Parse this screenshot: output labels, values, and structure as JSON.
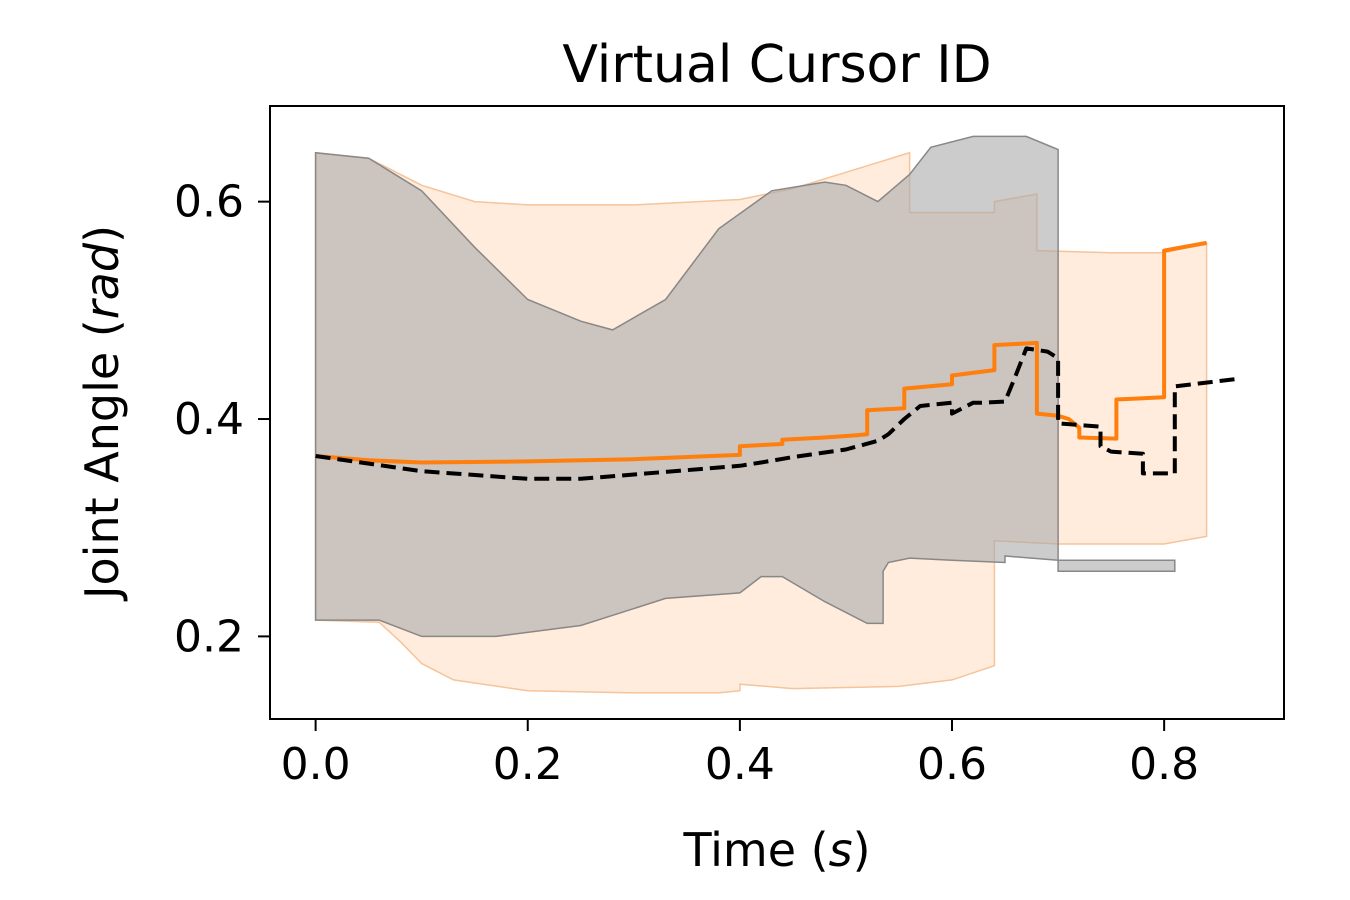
{
  "chart_data": {
    "type": "line",
    "title": "Virtual Cursor ID",
    "xlabel": {
      "text": "Time",
      "unit": "s"
    },
    "ylabel": {
      "text": "Joint Angle",
      "unit": "rad"
    },
    "xlim": [
      -0.043,
      0.913
    ],
    "ylim": [
      0.124,
      0.688
    ],
    "xticks": [
      0.0,
      0.2,
      0.4,
      0.6,
      0.8
    ],
    "xtick_labels": [
      "0.0",
      "0.2",
      "0.4",
      "0.6",
      "0.8"
    ],
    "yticks": [
      0.2,
      0.4,
      0.6
    ],
    "ytick_labels": [
      "0.2",
      "0.4",
      "0.6"
    ],
    "grid": false,
    "colors": {
      "orange": "#ff7f0e",
      "black": "#000000",
      "orange_band": "#ffdcc0",
      "gray_band": "#aaaaaa"
    },
    "bands": [
      {
        "color": "orange",
        "opacity": 0.55,
        "upper": [
          [
            0,
            0.645
          ],
          [
            0.05,
            0.64
          ],
          [
            0.1,
            0.615
          ],
          [
            0.15,
            0.6
          ],
          [
            0.2,
            0.597
          ],
          [
            0.3,
            0.597
          ],
          [
            0.4,
            0.602
          ],
          [
            0.45,
            0.612
          ],
          [
            0.5,
            0.627
          ],
          [
            0.56,
            0.645
          ],
          [
            0.56,
            0.59
          ],
          [
            0.64,
            0.59
          ],
          [
            0.64,
            0.6
          ],
          [
            0.68,
            0.607
          ],
          [
            0.68,
            0.555
          ],
          [
            0.75,
            0.553
          ],
          [
            0.8,
            0.553
          ],
          [
            0.84,
            0.562
          ]
        ],
        "lower": [
          [
            0,
            0.215
          ],
          [
            0.06,
            0.213
          ],
          [
            0.08,
            0.195
          ],
          [
            0.1,
            0.175
          ],
          [
            0.13,
            0.16
          ],
          [
            0.2,
            0.15
          ],
          [
            0.3,
            0.148
          ],
          [
            0.38,
            0.148
          ],
          [
            0.4,
            0.15
          ],
          [
            0.4,
            0.156
          ],
          [
            0.45,
            0.152
          ],
          [
            0.5,
            0.153
          ],
          [
            0.55,
            0.154
          ],
          [
            0.6,
            0.16
          ],
          [
            0.64,
            0.173
          ],
          [
            0.64,
            0.288
          ],
          [
            0.7,
            0.285
          ],
          [
            0.75,
            0.285
          ],
          [
            0.8,
            0.285
          ],
          [
            0.84,
            0.292
          ]
        ]
      },
      {
        "color": "gray",
        "opacity": 0.6,
        "upper": [
          [
            0,
            0.645
          ],
          [
            0.05,
            0.64
          ],
          [
            0.1,
            0.61
          ],
          [
            0.15,
            0.558
          ],
          [
            0.2,
            0.51
          ],
          [
            0.25,
            0.49
          ],
          [
            0.28,
            0.482
          ],
          [
            0.33,
            0.51
          ],
          [
            0.38,
            0.575
          ],
          [
            0.43,
            0.61
          ],
          [
            0.48,
            0.618
          ],
          [
            0.5,
            0.615
          ],
          [
            0.53,
            0.6
          ],
          [
            0.56,
            0.625
          ],
          [
            0.58,
            0.65
          ],
          [
            0.62,
            0.66
          ],
          [
            0.67,
            0.66
          ],
          [
            0.7,
            0.648
          ],
          [
            0.7,
            0.26
          ],
          [
            0.81,
            0.26
          ]
        ],
        "lower": [
          [
            0,
            0.215
          ],
          [
            0.06,
            0.215
          ],
          [
            0.1,
            0.2
          ],
          [
            0.17,
            0.2
          ],
          [
            0.25,
            0.21
          ],
          [
            0.33,
            0.235
          ],
          [
            0.4,
            0.24
          ],
          [
            0.42,
            0.255
          ],
          [
            0.44,
            0.255
          ],
          [
            0.48,
            0.232
          ],
          [
            0.52,
            0.212
          ],
          [
            0.535,
            0.212
          ],
          [
            0.535,
            0.26
          ],
          [
            0.54,
            0.268
          ],
          [
            0.56,
            0.272
          ],
          [
            0.6,
            0.27
          ],
          [
            0.65,
            0.268
          ],
          [
            0.65,
            0.274
          ],
          [
            0.7,
            0.27
          ],
          [
            0.75,
            0.27
          ],
          [
            0.81,
            0.27
          ]
        ]
      }
    ],
    "series": [
      {
        "color": "orange",
        "style": "solid",
        "points": [
          [
            0,
            0.366
          ],
          [
            0.05,
            0.362
          ],
          [
            0.1,
            0.36
          ],
          [
            0.2,
            0.361
          ],
          [
            0.3,
            0.363
          ],
          [
            0.4,
            0.367
          ],
          [
            0.4,
            0.375
          ],
          [
            0.44,
            0.377
          ],
          [
            0.44,
            0.381
          ],
          [
            0.48,
            0.383
          ],
          [
            0.51,
            0.385
          ],
          [
            0.52,
            0.386
          ],
          [
            0.52,
            0.408
          ],
          [
            0.555,
            0.41
          ],
          [
            0.555,
            0.428
          ],
          [
            0.6,
            0.432
          ],
          [
            0.6,
            0.44
          ],
          [
            0.64,
            0.445
          ],
          [
            0.64,
            0.468
          ],
          [
            0.68,
            0.47
          ],
          [
            0.68,
            0.405
          ],
          [
            0.7,
            0.403
          ],
          [
            0.71,
            0.4
          ],
          [
            0.72,
            0.392
          ],
          [
            0.72,
            0.383
          ],
          [
            0.755,
            0.382
          ],
          [
            0.755,
            0.418
          ],
          [
            0.8,
            0.42
          ],
          [
            0.8,
            0.555
          ],
          [
            0.84,
            0.562
          ]
        ]
      },
      {
        "color": "black",
        "style": "dashed",
        "points": [
          [
            0,
            0.366
          ],
          [
            0.1,
            0.352
          ],
          [
            0.2,
            0.345
          ],
          [
            0.25,
            0.345
          ],
          [
            0.3,
            0.349
          ],
          [
            0.4,
            0.357
          ],
          [
            0.42,
            0.36
          ],
          [
            0.45,
            0.365
          ],
          [
            0.5,
            0.372
          ],
          [
            0.53,
            0.38
          ],
          [
            0.54,
            0.386
          ],
          [
            0.555,
            0.4
          ],
          [
            0.57,
            0.412
          ],
          [
            0.6,
            0.415
          ],
          [
            0.6,
            0.405
          ],
          [
            0.62,
            0.415
          ],
          [
            0.63,
            0.415
          ],
          [
            0.65,
            0.416
          ],
          [
            0.66,
            0.44
          ],
          [
            0.67,
            0.465
          ],
          [
            0.69,
            0.462
          ],
          [
            0.7,
            0.456
          ],
          [
            0.7,
            0.396
          ],
          [
            0.74,
            0.393
          ],
          [
            0.74,
            0.375
          ],
          [
            0.75,
            0.37
          ],
          [
            0.78,
            0.368
          ],
          [
            0.78,
            0.35
          ],
          [
            0.81,
            0.35
          ],
          [
            0.81,
            0.43
          ],
          [
            0.87,
            0.437
          ]
        ]
      }
    ]
  }
}
